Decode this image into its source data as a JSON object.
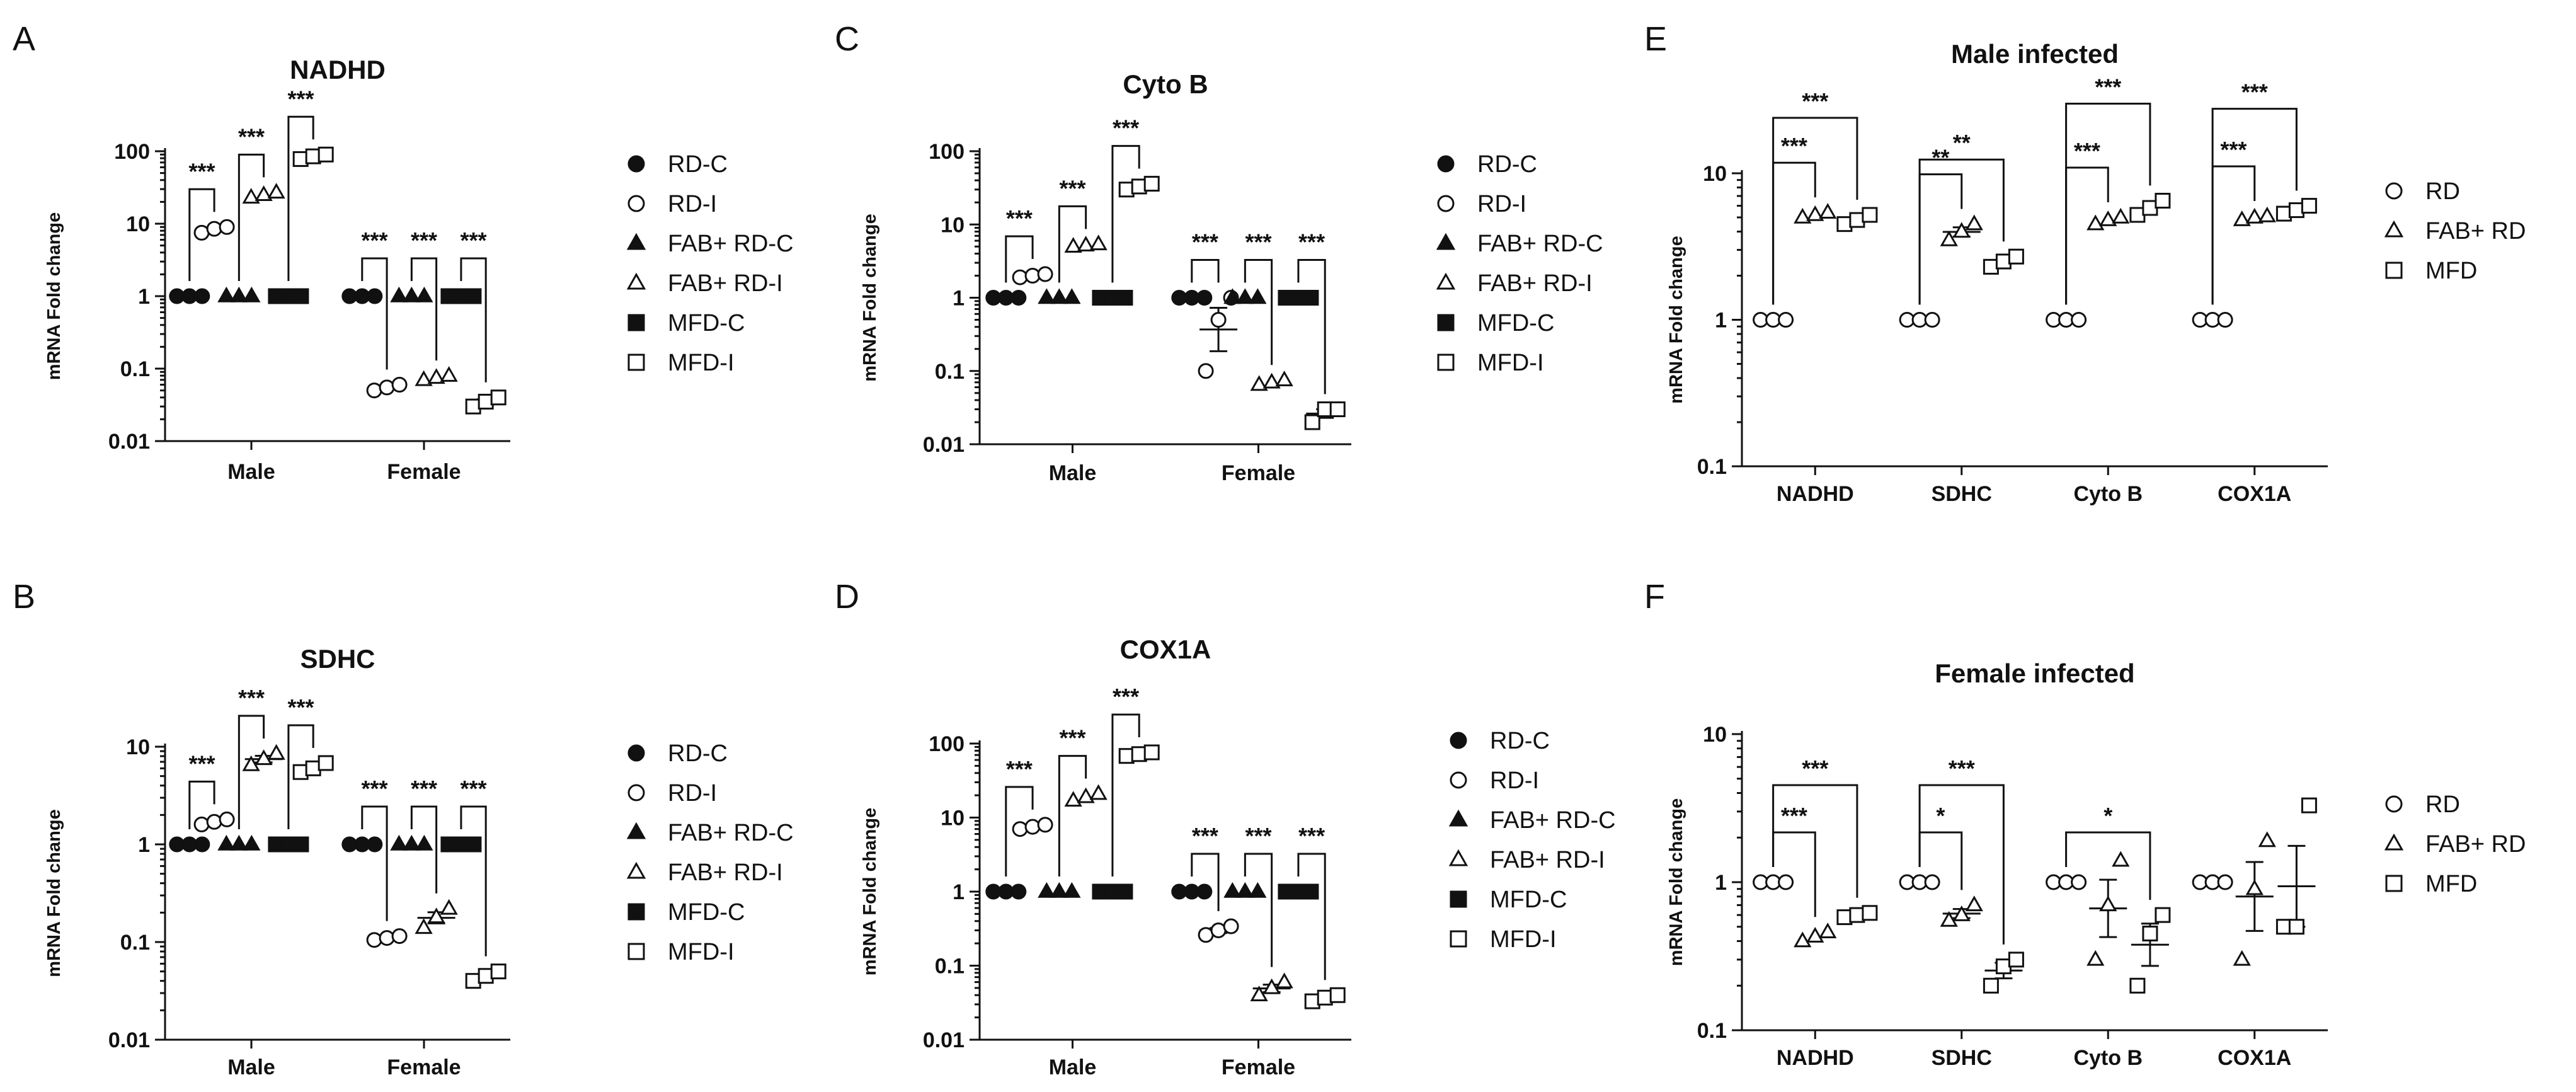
{
  "chart_data": [
    {
      "panel": "A",
      "type": "scatter",
      "title": "NADHD",
      "ylabel": "mRNA Fold change",
      "yscale": "log",
      "ylim": [
        0.01,
        100
      ],
      "yticks": [
        "0.01",
        "0.1",
        "1",
        "10",
        "100"
      ],
      "categories": [
        "Male",
        "Female"
      ],
      "series": [
        {
          "name": "RD-C",
          "marker": "circle",
          "filled": true,
          "values": [
            [
              1,
              1,
              1
            ],
            [
              1,
              1,
              1
            ]
          ]
        },
        {
          "name": "RD-I",
          "marker": "circle",
          "filled": false,
          "values": [
            [
              7.5,
              8.5,
              9
            ],
            [
              0.05,
              0.055,
              0.06
            ]
          ]
        },
        {
          "name": "FAB+ RD-C",
          "marker": "triangle",
          "filled": true,
          "values": [
            [
              1,
              1,
              1
            ],
            [
              1,
              1,
              1
            ]
          ]
        },
        {
          "name": "FAB+ RD-I",
          "marker": "triangle",
          "filled": false,
          "values": [
            [
              23,
              25,
              27
            ],
            [
              0.07,
              0.075,
              0.08
            ]
          ]
        },
        {
          "name": "MFD-C",
          "marker": "square",
          "filled": true,
          "values": [
            [
              1,
              1,
              1
            ],
            [
              1,
              1,
              1
            ]
          ]
        },
        {
          "name": "MFD-I",
          "marker": "square",
          "filled": false,
          "values": [
            [
              78,
              85,
              90
            ],
            [
              0.03,
              0.035,
              0.04
            ]
          ]
        }
      ],
      "significance": [
        "***",
        "***",
        "***",
        "***",
        "***",
        "***"
      ]
    },
    {
      "panel": "B",
      "type": "scatter",
      "title": "SDHC",
      "ylabel": "mRNA Fold change",
      "yscale": "log",
      "ylim": [
        0.01,
        10
      ],
      "yticks": [
        "0.01",
        "0.1",
        "1",
        "10"
      ],
      "categories": [
        "Male",
        "Female"
      ],
      "series": [
        {
          "name": "RD-C",
          "marker": "circle",
          "filled": true,
          "values": [
            [
              1,
              1,
              1
            ],
            [
              1,
              1,
              1
            ]
          ]
        },
        {
          "name": "RD-I",
          "marker": "circle",
          "filled": false,
          "values": [
            [
              1.6,
              1.7,
              1.8
            ],
            [
              0.105,
              0.11,
              0.115
            ]
          ]
        },
        {
          "name": "FAB+ RD-C",
          "marker": "triangle",
          "filled": true,
          "values": [
            [
              1,
              1,
              1
            ],
            [
              1,
              1,
              1
            ]
          ]
        },
        {
          "name": "FAB+ RD-I",
          "marker": "triangle",
          "filled": false,
          "values": [
            [
              6.5,
              7.5,
              8.5
            ],
            [
              0.14,
              0.18,
              0.22
            ]
          ]
        },
        {
          "name": "MFD-C",
          "marker": "square",
          "filled": true,
          "values": [
            [
              1,
              1,
              1
            ],
            [
              1,
              1,
              1
            ]
          ]
        },
        {
          "name": "MFD-I",
          "marker": "square",
          "filled": false,
          "values": [
            [
              5.5,
              6,
              6.8
            ],
            [
              0.04,
              0.045,
              0.05
            ]
          ]
        }
      ],
      "significance": [
        "***",
        "***",
        "***",
        "***",
        "***",
        "***"
      ]
    },
    {
      "panel": "C",
      "type": "scatter",
      "title": "Cyto B",
      "ylabel": "mRNA Fold change",
      "yscale": "log",
      "ylim": [
        0.01,
        100
      ],
      "yticks": [
        "0.01",
        "0.1",
        "1",
        "10",
        "100"
      ],
      "categories": [
        "Male",
        "Female"
      ],
      "series": [
        {
          "name": "RD-C",
          "marker": "circle",
          "filled": true,
          "values": [
            [
              1,
              1,
              1
            ],
            [
              1,
              1,
              1
            ]
          ]
        },
        {
          "name": "RD-I",
          "marker": "circle",
          "filled": false,
          "values": [
            [
              1.9,
              2,
              2.1
            ],
            [
              0.1,
              0.5,
              1
            ]
          ]
        },
        {
          "name": "FAB+ RD-C",
          "marker": "triangle",
          "filled": true,
          "values": [
            [
              1,
              1,
              1
            ],
            [
              1,
              1,
              1
            ]
          ]
        },
        {
          "name": "FAB+ RD-I",
          "marker": "triangle",
          "filled": false,
          "values": [
            [
              5,
              5.2,
              5.4
            ],
            [
              0.065,
              0.07,
              0.075
            ]
          ]
        },
        {
          "name": "MFD-C",
          "marker": "square",
          "filled": true,
          "values": [
            [
              1,
              1,
              1
            ],
            [
              1,
              1,
              1
            ]
          ]
        },
        {
          "name": "MFD-I",
          "marker": "square",
          "filled": false,
          "values": [
            [
              30,
              33,
              36
            ],
            [
              0.02,
              0.03,
              0.03
            ]
          ]
        }
      ],
      "significance": [
        "***",
        "***",
        "***",
        "***",
        "***",
        "***"
      ]
    },
    {
      "panel": "D",
      "type": "scatter",
      "title": "COX1A",
      "ylabel": "mRNA Fold change",
      "yscale": "log",
      "ylim": [
        0.01,
        100
      ],
      "yticks": [
        "0.01",
        "0.1",
        "1",
        "10",
        "100"
      ],
      "categories": [
        "Male",
        "Female"
      ],
      "series": [
        {
          "name": "RD-C",
          "marker": "circle",
          "filled": true,
          "values": [
            [
              1,
              1,
              1
            ],
            [
              1,
              1,
              1
            ]
          ]
        },
        {
          "name": "RD-I",
          "marker": "circle",
          "filled": false,
          "values": [
            [
              7,
              7.5,
              8
            ],
            [
              0.26,
              0.3,
              0.34
            ]
          ]
        },
        {
          "name": "FAB+ RD-C",
          "marker": "triangle",
          "filled": true,
          "values": [
            [
              1,
              1,
              1
            ],
            [
              1,
              1,
              1
            ]
          ]
        },
        {
          "name": "FAB+ RD-I",
          "marker": "triangle",
          "filled": false,
          "values": [
            [
              17,
              19,
              21
            ],
            [
              0.04,
              0.05,
              0.06
            ]
          ]
        },
        {
          "name": "MFD-C",
          "marker": "square",
          "filled": true,
          "values": [
            [
              1,
              1,
              1
            ],
            [
              1,
              1,
              1
            ]
          ]
        },
        {
          "name": "MFD-I",
          "marker": "square",
          "filled": false,
          "values": [
            [
              68,
              72,
              76
            ],
            [
              0.033,
              0.037,
              0.04
            ]
          ]
        }
      ],
      "significance": [
        "***",
        "***",
        "***",
        "***",
        "***",
        "***"
      ]
    },
    {
      "panel": "E",
      "type": "scatter",
      "title": "Male infected",
      "ylabel": "mRNA Fold change",
      "yscale": "log",
      "ylim": [
        0.1,
        10
      ],
      "yticks": [
        "0.1",
        "1",
        "10"
      ],
      "categories": [
        "NADHD",
        "SDHC",
        "Cyto B",
        "COX1A"
      ],
      "series": [
        {
          "name": "RD",
          "marker": "circle",
          "filled": false,
          "values": [
            [
              1,
              1,
              1
            ],
            [
              1,
              1,
              1
            ],
            [
              1,
              1,
              1
            ],
            [
              1,
              1,
              1
            ]
          ]
        },
        {
          "name": "FAB+ RD",
          "marker": "triangle",
          "filled": false,
          "values": [
            [
              5,
              5.2,
              5.4
            ],
            [
              3.5,
              4,
              4.5
            ],
            [
              4.5,
              4.8,
              5
            ],
            [
              4.8,
              5,
              5.1
            ]
          ]
        },
        {
          "name": "MFD",
          "marker": "square",
          "filled": false,
          "values": [
            [
              4.5,
              4.8,
              5.2
            ],
            [
              2.3,
              2.5,
              2.7
            ],
            [
              5.2,
              5.8,
              6.5
            ],
            [
              5.3,
              5.6,
              6
            ]
          ]
        }
      ],
      "significance": [
        "***",
        "***",
        "**",
        "**",
        "***",
        "***",
        "***",
        "***"
      ]
    },
    {
      "panel": "F",
      "type": "scatter",
      "title": "Female infected",
      "ylabel": "mRNA Fold change",
      "yscale": "log",
      "ylim": [
        0.1,
        10
      ],
      "yticks": [
        "0.1",
        "1",
        "10"
      ],
      "categories": [
        "NADHD",
        "SDHC",
        "Cyto B",
        "COX1A"
      ],
      "series": [
        {
          "name": "RD",
          "marker": "circle",
          "filled": false,
          "values": [
            [
              1,
              1,
              1
            ],
            [
              1,
              1,
              1
            ],
            [
              1,
              1,
              1
            ],
            [
              1,
              1,
              1
            ]
          ]
        },
        {
          "name": "FAB+ RD",
          "marker": "triangle",
          "filled": false,
          "values": [
            [
              0.4,
              0.43,
              0.46
            ],
            [
              0.55,
              0.6,
              0.7
            ],
            [
              0.3,
              0.7,
              1.4
            ],
            [
              0.3,
              0.9,
              1.9
            ]
          ]
        },
        {
          "name": "MFD",
          "marker": "square",
          "filled": false,
          "values": [
            [
              0.58,
              0.6,
              0.62
            ],
            [
              0.2,
              0.27,
              0.3
            ],
            [
              0.2,
              0.45,
              0.6
            ],
            [
              0.5,
              0.5,
              3.3
            ]
          ]
        }
      ],
      "significance": [
        "***",
        "***",
        "*",
        "***",
        "*"
      ]
    }
  ]
}
